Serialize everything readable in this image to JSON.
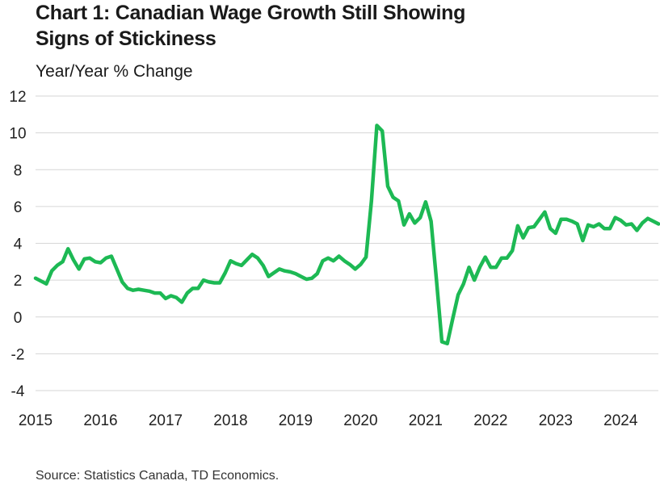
{
  "chart_data": {
    "type": "line",
    "title_lines": [
      "Chart 1: Canadian Wage Growth Still Showing",
      "Signs of Stickiness"
    ],
    "ylabel": "Year/Year % Change",
    "source": "Source: Statistics Canada, TD Economics.",
    "ylim": [
      -4,
      12
    ],
    "yticks": [
      "12",
      "10",
      "8",
      "6",
      "4",
      "2",
      "0",
      "-2",
      "-4"
    ],
    "xlim": [
      2015,
      2024.58
    ],
    "xticks": [
      "2015",
      "2016",
      "2017",
      "2018",
      "2019",
      "2020",
      "2021",
      "2022",
      "2023",
      "2024"
    ],
    "grid": true,
    "color": "#1db954",
    "series": [
      {
        "name": "Year/Year % Change",
        "x": [
          2015.0,
          2015.083,
          2015.167,
          2015.25,
          2015.333,
          2015.417,
          2015.5,
          2015.583,
          2015.667,
          2015.75,
          2015.833,
          2015.917,
          2016.0,
          2016.083,
          2016.167,
          2016.25,
          2016.333,
          2016.417,
          2016.5,
          2016.583,
          2016.667,
          2016.75,
          2016.833,
          2016.917,
          2017.0,
          2017.083,
          2017.167,
          2017.25,
          2017.333,
          2017.417,
          2017.5,
          2017.583,
          2017.667,
          2017.75,
          2017.833,
          2017.917,
          2018.0,
          2018.083,
          2018.167,
          2018.25,
          2018.333,
          2018.417,
          2018.5,
          2018.583,
          2018.667,
          2018.75,
          2018.833,
          2018.917,
          2019.0,
          2019.083,
          2019.167,
          2019.25,
          2019.333,
          2019.417,
          2019.5,
          2019.583,
          2019.667,
          2019.75,
          2019.833,
          2019.917,
          2020.0,
          2020.083,
          2020.167,
          2020.25,
          2020.333,
          2020.417,
          2020.5,
          2020.583,
          2020.667,
          2020.75,
          2020.833,
          2020.917,
          2021.0,
          2021.083,
          2021.167,
          2021.25,
          2021.333,
          2021.417,
          2021.5,
          2021.583,
          2021.667,
          2021.75,
          2021.833,
          2021.917,
          2022.0,
          2022.083,
          2022.167,
          2022.25,
          2022.333,
          2022.417,
          2022.5,
          2022.583,
          2022.667,
          2022.75,
          2022.833,
          2022.917,
          2023.0,
          2023.083,
          2023.167,
          2023.25,
          2023.333,
          2023.417,
          2023.5,
          2023.583,
          2023.667,
          2023.75,
          2023.833,
          2023.917,
          2024.0,
          2024.083,
          2024.167,
          2024.25,
          2024.333,
          2024.417,
          2024.5,
          2024.583
        ],
        "values": [
          2.1,
          1.95,
          1.8,
          2.5,
          2.8,
          3.0,
          3.7,
          3.1,
          2.6,
          3.15,
          3.2,
          3.0,
          2.95,
          3.2,
          3.3,
          2.6,
          1.9,
          1.55,
          1.45,
          1.5,
          1.45,
          1.4,
          1.3,
          1.3,
          1.0,
          1.15,
          1.05,
          0.8,
          1.3,
          1.55,
          1.55,
          2.0,
          1.9,
          1.85,
          1.85,
          2.4,
          3.05,
          2.9,
          2.8,
          3.1,
          3.4,
          3.2,
          2.8,
          2.2,
          2.4,
          2.6,
          2.5,
          2.45,
          2.35,
          2.2,
          2.05,
          2.1,
          2.35,
          3.05,
          3.2,
          3.05,
          3.3,
          3.05,
          2.85,
          2.6,
          2.85,
          3.25,
          6.3,
          10.4,
          10.1,
          7.1,
          6.5,
          6.3,
          5.0,
          5.6,
          5.1,
          5.4,
          6.25,
          5.2,
          2.0,
          -1.35,
          -1.45,
          -0.1,
          1.2,
          1.8,
          2.7,
          2.0,
          2.7,
          3.25,
          2.7,
          2.7,
          3.2,
          3.2,
          3.6,
          4.95,
          4.3,
          4.85,
          4.9,
          5.3,
          5.7,
          4.8,
          4.55,
          5.3,
          5.3,
          5.2,
          5.05,
          4.15,
          5.0,
          4.9,
          5.05,
          4.8,
          4.8,
          5.4,
          5.25,
          5.0,
          5.05,
          4.7,
          5.1,
          5.35,
          5.2,
          5.05
        ]
      }
    ]
  }
}
